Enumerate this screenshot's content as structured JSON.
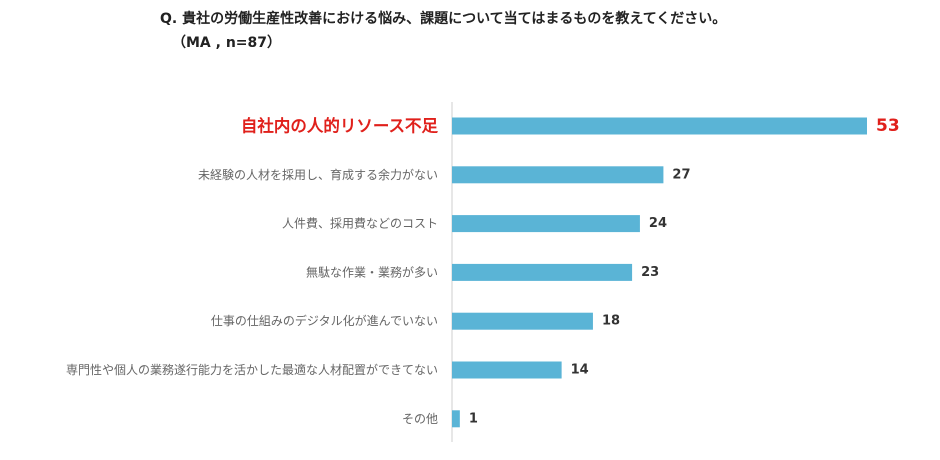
{
  "header": {
    "question": "Q. 貴社の労働生産性改善における悩み、課題について当てはまるものを教えてください。",
    "sample": "（MA , n=87）"
  },
  "colors": {
    "bar": "#5ab4d6",
    "highlight": "#e0201b",
    "label": "#666666",
    "value": "#333333",
    "axis": "#cfcfcf"
  },
  "chart_data": {
    "type": "bar",
    "orientation": "horizontal",
    "title": "Q. 貴社の労働生産性改善における悩み、課題について当てはまるものを教えてください。",
    "subtitle": "（MA , n=87）",
    "categories": [
      "自社内の人的リソース不足",
      "未経験の人材を採用し、育成する余力がない",
      "人件費、採用費などのコスト",
      "無駄な作業・業務が多い",
      "仕事の仕組みのデジタル化が進んでいない",
      "専門性や個人の業務遂行能力を活かした最適な人材配置ができてない",
      "その他"
    ],
    "values": [
      53,
      27,
      24,
      23,
      18,
      14,
      1
    ],
    "highlight_index": 0,
    "xlim": [
      0,
      53
    ],
    "grid": false,
    "legend": "none"
  }
}
